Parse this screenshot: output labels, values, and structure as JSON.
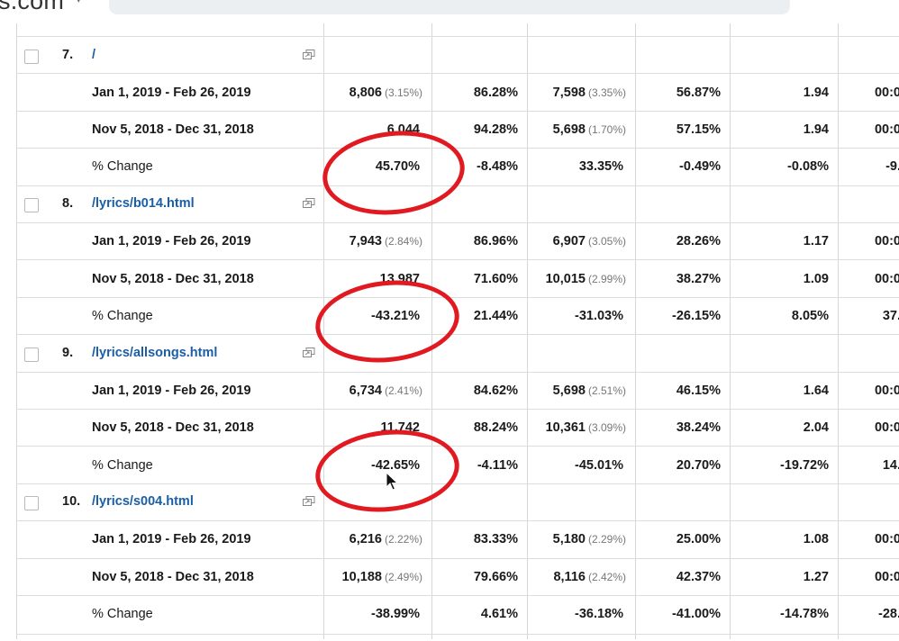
{
  "browser": {
    "site_fragment": "s.com",
    "caret": "▾"
  },
  "entries": [
    {
      "num": "7.",
      "path": "/",
      "rows": [
        {
          "label": "Jan 1, 2019 - Feb 26, 2019",
          "c1": "8,806",
          "c1p": "(3.15%)",
          "c2": "86.28%",
          "c3": "7,598",
          "c3p": "(3.35%)",
          "c4": "56.87%",
          "c5": "1.94",
          "c6": "00:0"
        },
        {
          "label": "Nov 5, 2018 - Dec 31, 2018",
          "c1": "6,044",
          "c1p": "",
          "c2": "94.28%",
          "c3": "5,698",
          "c3p": "(1.70%)",
          "c4": "57.15%",
          "c5": "1.94",
          "c6": "00:0"
        },
        {
          "label": "% Change",
          "c1": "45.70%",
          "c1p": "",
          "c2": "-8.48%",
          "c3": "33.35%",
          "c3p": "",
          "c4": "-0.49%",
          "c5": "-0.08%",
          "c6": "-9."
        }
      ]
    },
    {
      "num": "8.",
      "path": "/lyrics/b014.html",
      "rows": [
        {
          "label": "Jan 1, 2019 - Feb 26, 2019",
          "c1": "7,943",
          "c1p": "(2.84%)",
          "c2": "86.96%",
          "c3": "6,907",
          "c3p": "(3.05%)",
          "c4": "28.26%",
          "c5": "1.17",
          "c6": "00:0"
        },
        {
          "label": "Nov 5, 2018 - Dec 31, 2018",
          "c1": "13,987",
          "c1p": "",
          "c2": "71.60%",
          "c3": "10,015",
          "c3p": "(2.99%)",
          "c4": "38.27%",
          "c5": "1.09",
          "c6": "00:0"
        },
        {
          "label": "% Change",
          "c1": "-43.21%",
          "c1p": "",
          "c2": "21.44%",
          "c3": "-31.03%",
          "c3p": "",
          "c4": "-26.15%",
          "c5": "8.05%",
          "c6": "37."
        }
      ]
    },
    {
      "num": "9.",
      "path": "/lyrics/allsongs.html",
      "rows": [
        {
          "label": "Jan 1, 2019 - Feb 26, 2019",
          "c1": "6,734",
          "c1p": "(2.41%)",
          "c2": "84.62%",
          "c3": "5,698",
          "c3p": "(2.51%)",
          "c4": "46.15%",
          "c5": "1.64",
          "c6": "00:0"
        },
        {
          "label": "Nov 5, 2018 - Dec 31, 2018",
          "c1": "11,742",
          "c1p": "",
          "c2": "88.24%",
          "c3": "10,361",
          "c3p": "(3.09%)",
          "c4": "38.24%",
          "c5": "2.04",
          "c6": "00:0"
        },
        {
          "label": "% Change",
          "c1": "-42.65%",
          "c1p": "",
          "c2": "-4.11%",
          "c3": "-45.01%",
          "c3p": "",
          "c4": "20.70%",
          "c5": "-19.72%",
          "c6": "14."
        }
      ]
    },
    {
      "num": "10.",
      "path": "/lyrics/s004.html",
      "rows": [
        {
          "label": "Jan 1, 2019 - Feb 26, 2019",
          "c1": "6,216",
          "c1p": "(2.22%)",
          "c2": "83.33%",
          "c3": "5,180",
          "c3p": "(2.29%)",
          "c4": "25.00%",
          "c5": "1.08",
          "c6": "00:0"
        },
        {
          "label": "Nov 5, 2018 - Dec 31, 2018",
          "c1": "10,188",
          "c1p": "(2.49%)",
          "c2": "79.66%",
          "c3": "8,116",
          "c3p": "(2.42%)",
          "c4": "42.37%",
          "c5": "1.27",
          "c6": "00:0"
        },
        {
          "label": "% Change",
          "c1": "-38.99%",
          "c1p": "",
          "c2": "4.61%",
          "c3": "-36.18%",
          "c3p": "",
          "c4": "-41.00%",
          "c5": "-14.78%",
          "c6": "-28."
        }
      ]
    }
  ],
  "colors": {
    "link": "#1a5ea8",
    "annotation": "#e11a22",
    "border": "#dcdcdc"
  },
  "icons": {
    "row_checkbox": "checkbox-icon",
    "external_link": "open-in-new-icon",
    "pointer": "mouse-cursor-icon"
  }
}
